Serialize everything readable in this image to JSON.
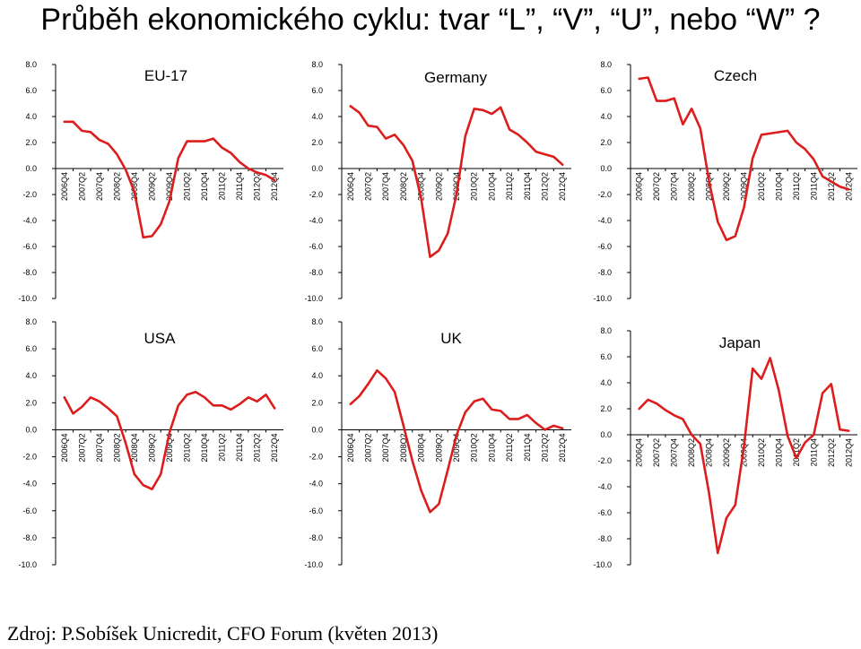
{
  "title": "Průběh ekonomického cyklu: tvar “L”, “V”, “U”, nebo “W” ?",
  "source": "Zdroj: P.Sobíšek Unicredit, CFO Forum (květen 2013)",
  "colors": {
    "line": "#dd1c1c",
    "axis": "#000000",
    "text": "#000000"
  },
  "chart_data": [
    {
      "type": "line",
      "title": "EU-17",
      "categories": [
        "2006Q4",
        "2007Q2",
        "2007Q4",
        "2008Q2",
        "2008Q4",
        "2009Q2",
        "2009Q4",
        "2010Q2",
        "2010Q4",
        "2011Q2",
        "2011Q4",
        "2012Q2",
        "2012Q4"
      ],
      "y_ticks": [
        "8.0",
        "6.0",
        "4.0",
        "2.0",
        "0.0",
        "-2.0",
        "-4.0",
        "-6.0",
        "-8.0",
        "-10.0"
      ],
      "ylim": [
        -10,
        8
      ],
      "x": [
        0,
        0.5,
        1,
        1.5,
        2,
        2.5,
        3,
        3.5,
        4,
        4.5,
        5,
        5.5,
        6,
        6.5,
        7,
        7.5,
        8,
        8.5,
        9,
        9.5,
        10,
        10.5,
        11,
        11.5,
        12
      ],
      "values": [
        3.6,
        3.6,
        2.9,
        2.8,
        2.2,
        1.9,
        1.1,
        -0.1,
        -1.8,
        -5.3,
        -5.2,
        -4.3,
        -2.5,
        0.8,
        2.1,
        2.1,
        2.1,
        2.3,
        1.6,
        1.2,
        0.5,
        0.0,
        -0.3,
        -0.5,
        -0.9
      ]
    },
    {
      "type": "line",
      "title": "Germany",
      "categories": [
        "2006Q4",
        "2007Q2",
        "2007Q4",
        "2008Q2",
        "2008Q4",
        "2009Q2",
        "2009Q4",
        "2010Q2",
        "2010Q4",
        "2011Q2",
        "2011Q4",
        "2012Q2",
        "2012Q4"
      ],
      "y_ticks": [
        "8.0",
        "6.0",
        "4.0",
        "2.0",
        "0.0",
        "-2.0",
        "-4.0",
        "-6.0",
        "-8.0",
        "-10.0"
      ],
      "ylim": [
        -10,
        8
      ],
      "x": [
        0,
        0.5,
        1,
        1.5,
        2,
        2.5,
        3,
        3.5,
        4,
        4.5,
        5,
        5.5,
        6,
        6.5,
        7,
        7.5,
        8,
        8.5,
        9,
        9.5,
        10,
        10.5,
        11,
        11.5,
        12
      ],
      "values": [
        4.8,
        4.3,
        3.3,
        3.2,
        2.3,
        2.6,
        1.8,
        0.6,
        -2.3,
        -6.8,
        -6.3,
        -5.0,
        -2.0,
        2.5,
        4.6,
        4.5,
        4.2,
        4.7,
        3.0,
        2.6,
        2.0,
        1.3,
        1.1,
        0.9,
        0.3
      ]
    },
    {
      "type": "line",
      "title": "Czech",
      "categories": [
        "2006Q4",
        "2007Q2",
        "2007Q4",
        "2008Q2",
        "2008Q4",
        "2009Q2",
        "2009Q4",
        "2010Q2",
        "2010Q4",
        "2011Q2",
        "2011Q4",
        "2012Q2",
        "2012Q4"
      ],
      "y_ticks": [
        "8.0",
        "6.0",
        "4.0",
        "2.0",
        "0.0",
        "-2.0",
        "-4.0",
        "-6.0",
        "-8.0",
        "-10.0"
      ],
      "ylim": [
        -10,
        8
      ],
      "x": [
        0,
        0.5,
        1,
        1.5,
        2,
        2.5,
        3,
        3.5,
        4,
        4.5,
        5,
        5.5,
        6,
        6.5,
        7,
        7.5,
        8,
        8.5,
        9,
        9.5,
        10,
        10.5,
        11,
        11.5,
        12
      ],
      "values": [
        6.9,
        7.0,
        5.2,
        5.2,
        5.4,
        3.4,
        4.6,
        3.1,
        -1.0,
        -4.1,
        -5.5,
        -5.2,
        -3.0,
        0.8,
        2.6,
        2.7,
        2.8,
        2.9,
        2.0,
        1.5,
        0.7,
        -0.6,
        -1.0,
        -1.4,
        -1.6
      ]
    },
    {
      "type": "line",
      "title": "USA",
      "categories": [
        "2006Q4",
        "2007Q2",
        "2007Q4",
        "2008Q2",
        "2008Q4",
        "2009Q2",
        "2009Q4",
        "2010Q2",
        "2010Q4",
        "2011Q2",
        "2011Q4",
        "2012Q2",
        "2012Q4"
      ],
      "y_ticks": [
        "8.0",
        "6.0",
        "4.0",
        "2.0",
        "0.0",
        "-2.0",
        "-4.0",
        "-6.0",
        "-8.0",
        "-10.0"
      ],
      "ylim": [
        -10,
        8
      ],
      "x": [
        0,
        0.5,
        1,
        1.5,
        2,
        2.5,
        3,
        3.5,
        4,
        4.5,
        5,
        5.5,
        6,
        6.5,
        7,
        7.5,
        8,
        8.5,
        9,
        9.5,
        10,
        10.5,
        11,
        11.5,
        12
      ],
      "values": [
        2.4,
        1.2,
        1.7,
        2.4,
        2.1,
        1.6,
        1.0,
        -1.0,
        -3.3,
        -4.1,
        -4.4,
        -3.3,
        -0.2,
        1.8,
        2.6,
        2.8,
        2.4,
        1.8,
        1.8,
        1.5,
        1.9,
        2.4,
        2.1,
        2.6,
        1.6
      ]
    },
    {
      "type": "line",
      "title": "UK",
      "categories": [
        "2006Q4",
        "2007Q2",
        "2007Q4",
        "2008Q2",
        "2008Q4",
        "2009Q2",
        "2009Q4",
        "2010Q2",
        "2010Q4",
        "2011Q2",
        "2011Q4",
        "2012Q2",
        "2012Q4"
      ],
      "y_ticks": [
        "8.0",
        "6.0",
        "4.0",
        "2.0",
        "0.0",
        "-2.0",
        "-4.0",
        "-6.0",
        "-8.0",
        "-10.0"
      ],
      "ylim": [
        -10,
        8
      ],
      "x": [
        0,
        0.5,
        1,
        1.5,
        2,
        2.5,
        3,
        3.5,
        4,
        4.5,
        5,
        5.5,
        6,
        6.5,
        7,
        7.5,
        8,
        8.5,
        9,
        9.5,
        10,
        10.5,
        11,
        11.5,
        12
      ],
      "values": [
        1.9,
        2.5,
        3.4,
        4.4,
        3.8,
        2.8,
        0.3,
        -2.3,
        -4.5,
        -6.1,
        -5.5,
        -3.0,
        -0.4,
        1.3,
        2.1,
        2.3,
        1.5,
        1.4,
        0.8,
        0.8,
        1.1,
        0.5,
        0.0,
        0.3,
        0.1
      ]
    },
    {
      "type": "line",
      "title": "Japan",
      "categories": [
        "2006Q4",
        "2007Q2",
        "2007Q4",
        "2008Q2",
        "2008Q4",
        "2009Q2",
        "2009Q4",
        "2010Q2",
        "2010Q4",
        "2011Q2",
        "2011Q4",
        "2012Q2",
        "2012Q4"
      ],
      "y_ticks": [
        "8.0",
        "6.0",
        "4.0",
        "2.0",
        "0.0",
        "-2.0",
        "-4.0",
        "-6.0",
        "-8.0",
        "-10.0"
      ],
      "ylim": [
        -10,
        8
      ],
      "x": [
        0,
        0.5,
        1,
        1.5,
        2,
        2.5,
        3,
        3.5,
        4,
        4.5,
        5,
        5.5,
        6,
        6.5,
        7,
        7.5,
        8,
        8.5,
        9,
        9.5,
        10,
        10.5,
        11,
        11.5,
        12
      ],
      "values": [
        2.0,
        2.7,
        2.4,
        1.9,
        1.5,
        1.2,
        0.0,
        -0.7,
        -4.5,
        -9.1,
        -6.4,
        -5.4,
        -0.9,
        5.1,
        4.3,
        5.9,
        3.4,
        -0.1,
        -1.8,
        -0.6,
        0.0,
        3.2,
        3.9,
        0.4,
        0.3
      ]
    }
  ]
}
